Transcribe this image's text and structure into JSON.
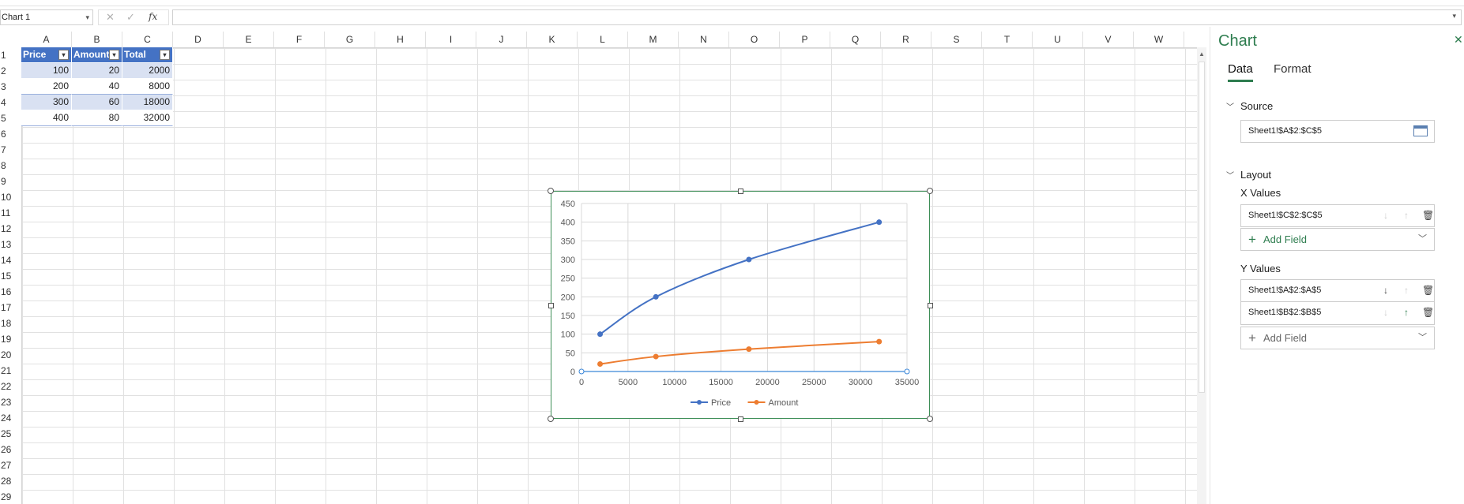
{
  "formula_bar": {
    "name_box": "Chart 1",
    "cancel": "✕",
    "enter": "✓",
    "fx": "fx",
    "formula": ""
  },
  "columns": [
    "A",
    "B",
    "C",
    "D",
    "E",
    "F",
    "G",
    "H",
    "I",
    "J",
    "K",
    "L",
    "M",
    "N",
    "O",
    "P",
    "Q",
    "R",
    "S",
    "T",
    "U",
    "V",
    "W"
  ],
  "rows": [
    "1",
    "2",
    "3",
    "4",
    "5",
    "6",
    "7",
    "8",
    "9",
    "10",
    "11",
    "12",
    "13",
    "14",
    "15",
    "16",
    "17",
    "18",
    "19",
    "20",
    "21",
    "22",
    "23",
    "24",
    "25",
    "26",
    "27",
    "28",
    "29"
  ],
  "table": {
    "headers": [
      "Price",
      "Amount",
      "Total"
    ],
    "rows": [
      [
        "100",
        "20",
        "2000"
      ],
      [
        "200",
        "40",
        "8000"
      ],
      [
        "300",
        "60",
        "18000"
      ],
      [
        "400",
        "80",
        "32000"
      ]
    ]
  },
  "chart_data": {
    "type": "scatter",
    "title": "",
    "xlabel": "",
    "ylabel": "",
    "x": [
      2000,
      8000,
      18000,
      32000
    ],
    "series": [
      {
        "name": "Price",
        "values": [
          100,
          200,
          300,
          400
        ],
        "color": "#4472c4"
      },
      {
        "name": "Amount",
        "values": [
          20,
          40,
          60,
          80
        ],
        "color": "#ed7d31"
      }
    ],
    "xlim": [
      0,
      35000
    ],
    "ylim": [
      0,
      450
    ],
    "x_ticks": [
      "0",
      "5000",
      "10000",
      "15000",
      "20000",
      "25000",
      "30000",
      "35000"
    ],
    "y_ticks": [
      "0",
      "50",
      "100",
      "150",
      "200",
      "250",
      "300",
      "350",
      "400",
      "450"
    ],
    "grid": true,
    "smooth": true,
    "legend": "bottom"
  },
  "panel": {
    "title": "Chart",
    "close": "✕",
    "tabs": [
      "Data",
      "Format"
    ],
    "source": {
      "heading": "Source",
      "value": "Sheet1!$A$2:$C$5"
    },
    "layout": {
      "heading": "Layout",
      "x_values_label": "X Values",
      "x_values": [
        "Sheet1!$C$2:$C$5"
      ],
      "y_values_label": "Y Values",
      "y_values": [
        "Sheet1!$A$2:$A$5",
        "Sheet1!$B$2:$B$5"
      ],
      "add_field": "Add Field"
    },
    "accent": "#2e7d4f"
  }
}
